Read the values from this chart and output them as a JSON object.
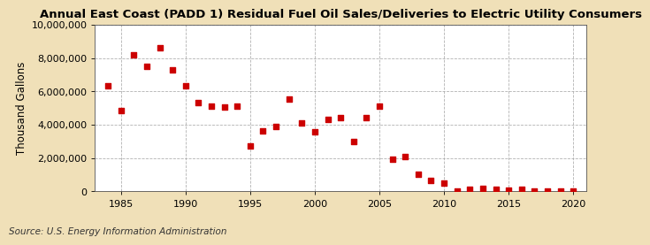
{
  "title": "Annual East Coast (PADD 1) Residual Fuel Oil Sales/Deliveries to Electric Utility Consumers",
  "ylabel": "Thousand Gallons",
  "source": "Source: U.S. Energy Information Administration",
  "background_color": "#f0e0b8",
  "plot_background_color": "#ffffff",
  "marker_color": "#cc0000",
  "years": [
    1984,
    1985,
    1986,
    1987,
    1988,
    1989,
    1990,
    1991,
    1992,
    1993,
    1994,
    1995,
    1996,
    1997,
    1998,
    1999,
    2000,
    2001,
    2002,
    2003,
    2004,
    2005,
    2006,
    2007,
    2008,
    2009,
    2010,
    2011,
    2012,
    2013,
    2014,
    2015,
    2016,
    2017,
    2018,
    2019,
    2020
  ],
  "values": [
    6350000,
    4850000,
    8200000,
    7500000,
    8600000,
    7280000,
    6350000,
    5350000,
    5100000,
    5050000,
    5100000,
    2750000,
    3650000,
    3900000,
    5550000,
    4100000,
    3600000,
    4350000,
    4450000,
    3000000,
    4450000,
    5100000,
    1950000,
    2100000,
    1050000,
    650000,
    500000,
    50000,
    130000,
    200000,
    130000,
    100000,
    130000,
    50000,
    50000,
    40000,
    30000
  ],
  "xlim": [
    1983,
    2021
  ],
  "ylim": [
    0,
    10000000
  ],
  "yticks": [
    0,
    2000000,
    4000000,
    6000000,
    8000000,
    10000000
  ],
  "xticks": [
    1985,
    1990,
    1995,
    2000,
    2005,
    2010,
    2015,
    2020
  ],
  "grid_color": "#aaaaaa",
  "title_fontsize": 9.5,
  "label_fontsize": 8.5,
  "tick_fontsize": 8,
  "source_fontsize": 7.5,
  "marker_size": 16
}
